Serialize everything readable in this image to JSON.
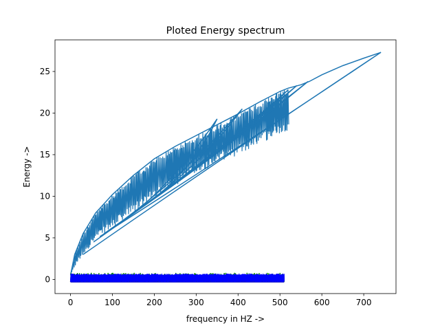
{
  "chart_data": {
    "type": "line",
    "title": "Ploted Energy spectrum",
    "xlabel": "frequency in HZ ->",
    "ylabel": "Energy ->",
    "xlim": [
      -37,
      777
    ],
    "ylim": [
      -1.7,
      28.8
    ],
    "xticks": [
      0,
      100,
      200,
      300,
      400,
      500,
      600,
      700
    ],
    "xtick_labels": [
      "0",
      "100",
      "200",
      "300",
      "400",
      "500",
      "600",
      "700"
    ],
    "yticks": [
      0,
      5,
      10,
      15,
      20,
      25
    ],
    "ytick_labels": [
      "0",
      "5",
      "10",
      "15",
      "20",
      "25"
    ],
    "grid": false,
    "legend": "none",
    "series": [
      {
        "color": "#1f77b4",
        "envelope_upper": {
          "x": [
            0,
            10,
            30,
            60,
            100,
            150,
            200,
            250,
            300,
            350,
            400,
            450,
            500,
            520,
            550,
            570,
            600,
            650,
            700,
            741
          ],
          "y": [
            0.5,
            3.0,
            5.5,
            8.0,
            10.2,
            12.5,
            14.5,
            16.0,
            17.3,
            18.6,
            19.9,
            21.3,
            22.6,
            23.0,
            23.4,
            23.8,
            24.6,
            25.7,
            26.6,
            27.3
          ]
        },
        "envelope_lower": {
          "x": [
            0,
            10,
            30,
            60,
            100,
            150,
            200,
            250,
            300,
            350,
            400,
            450,
            500,
            520,
            550,
            570,
            600,
            650,
            700,
            741
          ],
          "y": [
            0.5,
            1.5,
            3.0,
            4.8,
            6.2,
            8.0,
            9.8,
            11.3,
            12.6,
            13.9,
            15.0,
            16.3,
            17.5,
            18.0,
            18.5,
            18.9,
            19.6,
            22.0,
            24.5,
            27.3
          ]
        },
        "peaks": [
          {
            "x": 741,
            "y": 27.3
          },
          {
            "x": 567,
            "y": 23.8
          },
          {
            "x": 540,
            "y": 23.3
          },
          {
            "x": 520,
            "y": 22.8
          },
          {
            "x": 410,
            "y": 20.5
          },
          {
            "x": 350,
            "y": 19.3
          }
        ]
      },
      {
        "color": "#ff0000",
        "band_x": [
          0,
          510
        ],
        "band_y": [
          -0.3,
          0.5
        ]
      },
      {
        "color": "#008000",
        "band_x": [
          0,
          510
        ],
        "band_y": [
          -0.3,
          0.8
        ]
      },
      {
        "color": "#0000ff",
        "band_x": [
          0,
          510
        ],
        "band_y": [
          -0.3,
          0.7
        ]
      }
    ]
  }
}
